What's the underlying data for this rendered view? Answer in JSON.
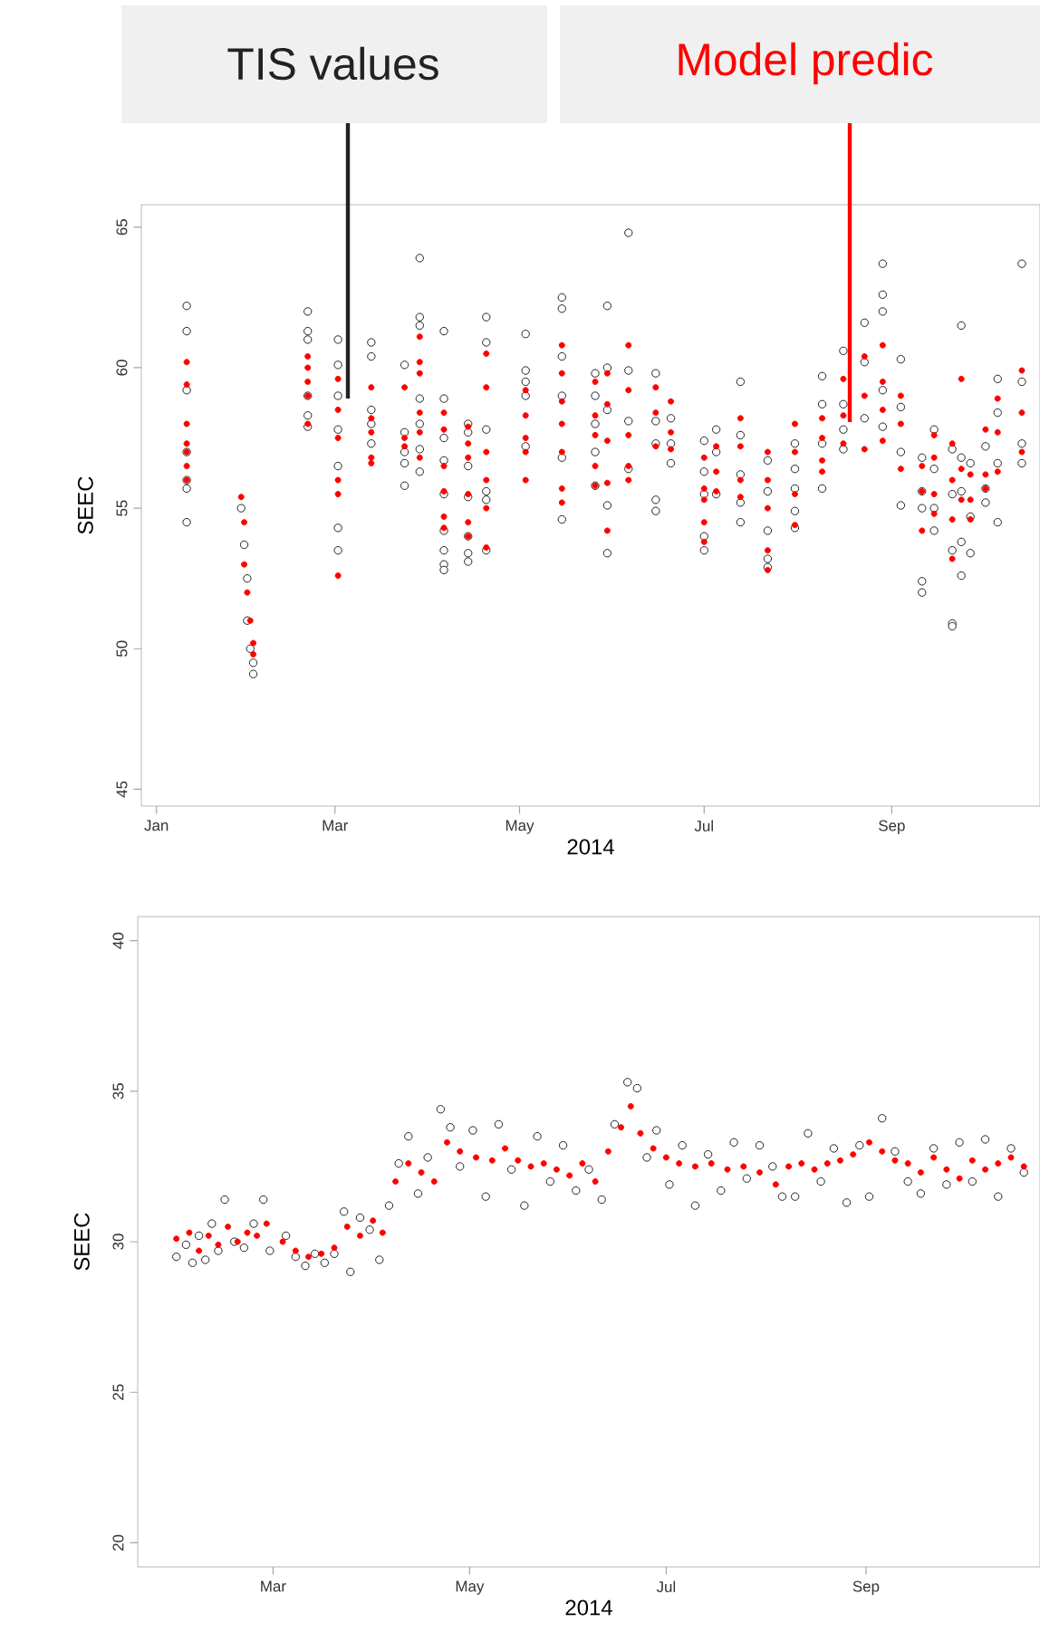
{
  "chart_data": [
    {
      "type": "scatter",
      "xlabel": "2014",
      "ylabel": "SEEC",
      "xlim": [
        "2013-12-27",
        "2014-10-20"
      ],
      "ylim": [
        44.4,
        65.8
      ],
      "xticks": [
        {
          "value": "2014-01-01",
          "label": "Jan"
        },
        {
          "value": "2014-03-01",
          "label": "Mar"
        },
        {
          "value": "2014-05-01",
          "label": "May"
        },
        {
          "value": "2014-07-01",
          "label": "Jul"
        },
        {
          "value": "2014-09-01",
          "label": "Sep"
        }
      ],
      "yticks": [
        45,
        50,
        55,
        60,
        65
      ],
      "series": [
        {
          "name": "TIS values",
          "color": "#222222",
          "x": [
            "2014-01-11",
            "2014-01-11",
            "2014-01-11",
            "2014-01-11",
            "2014-01-11",
            "2014-01-11",
            "2014-01-11",
            "2014-01-29",
            "2014-01-30",
            "2014-01-31",
            "2014-01-31",
            "2014-02-01",
            "2014-02-02",
            "2014-02-02",
            "2014-02-20",
            "2014-02-20",
            "2014-02-20",
            "2014-02-20",
            "2014-02-20",
            "2014-02-20",
            "2014-03-02",
            "2014-03-02",
            "2014-03-02",
            "2014-03-02",
            "2014-03-02",
            "2014-03-02",
            "2014-03-02",
            "2014-03-13",
            "2014-03-13",
            "2014-03-13",
            "2014-03-13",
            "2014-03-13",
            "2014-03-24",
            "2014-03-24",
            "2014-03-24",
            "2014-03-24",
            "2014-03-24",
            "2014-03-29",
            "2014-03-29",
            "2014-03-29",
            "2014-03-29",
            "2014-03-29",
            "2014-03-29",
            "2014-03-29",
            "2014-04-06",
            "2014-04-06",
            "2014-04-06",
            "2014-04-06",
            "2014-04-06",
            "2014-04-06",
            "2014-04-06",
            "2014-04-06",
            "2014-04-06",
            "2014-04-14",
            "2014-04-14",
            "2014-04-14",
            "2014-04-14",
            "2014-04-14",
            "2014-04-14",
            "2014-04-14",
            "2014-04-20",
            "2014-04-20",
            "2014-04-20",
            "2014-04-20",
            "2014-04-20",
            "2014-04-20",
            "2014-05-03",
            "2014-05-03",
            "2014-05-03",
            "2014-05-03",
            "2014-05-03",
            "2014-05-15",
            "2014-05-15",
            "2014-05-15",
            "2014-05-15",
            "2014-05-15",
            "2014-05-15",
            "2014-05-26",
            "2014-05-26",
            "2014-05-26",
            "2014-05-26",
            "2014-05-26",
            "2014-05-30",
            "2014-05-30",
            "2014-05-30",
            "2014-05-30",
            "2014-05-30",
            "2014-06-06",
            "2014-06-06",
            "2014-06-06",
            "2014-06-06",
            "2014-06-15",
            "2014-06-15",
            "2014-06-15",
            "2014-06-15",
            "2014-06-15",
            "2014-06-20",
            "2014-06-20",
            "2014-06-20",
            "2014-07-01",
            "2014-07-01",
            "2014-07-01",
            "2014-07-01",
            "2014-07-01",
            "2014-07-05",
            "2014-07-05",
            "2014-07-05",
            "2014-07-13",
            "2014-07-13",
            "2014-07-13",
            "2014-07-13",
            "2014-07-13",
            "2014-07-22",
            "2014-07-22",
            "2014-07-22",
            "2014-07-22",
            "2014-07-22",
            "2014-07-31",
            "2014-07-31",
            "2014-07-31",
            "2014-07-31",
            "2014-07-31",
            "2014-08-09",
            "2014-08-09",
            "2014-08-09",
            "2014-08-09",
            "2014-08-16",
            "2014-08-16",
            "2014-08-16",
            "2014-08-16",
            "2014-08-23",
            "2014-08-23",
            "2014-08-23",
            "2014-08-29",
            "2014-08-29",
            "2014-08-29",
            "2014-08-29",
            "2014-08-29",
            "2014-09-04",
            "2014-09-04",
            "2014-09-04",
            "2014-09-04",
            "2014-09-11",
            "2014-09-11",
            "2014-09-11",
            "2014-09-11",
            "2014-09-11",
            "2014-09-15",
            "2014-09-15",
            "2014-09-15",
            "2014-09-15",
            "2014-09-21",
            "2014-09-21",
            "2014-09-21",
            "2014-09-21",
            "2014-09-21",
            "2014-09-24",
            "2014-09-24",
            "2014-09-24",
            "2014-09-24",
            "2014-09-24",
            "2014-09-27",
            "2014-09-27",
            "2014-09-27",
            "2014-10-02",
            "2014-10-02",
            "2014-10-02",
            "2014-10-06",
            "2014-10-06",
            "2014-10-06",
            "2014-10-06",
            "2014-10-14",
            "2014-10-14",
            "2014-10-14",
            "2014-10-14"
          ],
          "values": [
            62.2,
            61.3,
            59.2,
            57.0,
            56.0,
            55.7,
            54.5,
            55.0,
            53.7,
            52.5,
            51.0,
            50.0,
            49.5,
            49.1,
            62.0,
            61.3,
            61.0,
            59.0,
            58.3,
            57.9,
            61.0,
            60.1,
            59.0,
            57.8,
            56.5,
            54.3,
            53.5,
            60.9,
            60.4,
            58.5,
            58.0,
            57.3,
            60.1,
            57.7,
            57.0,
            56.6,
            55.8,
            63.9,
            61.8,
            61.5,
            58.9,
            58.0,
            57.1,
            56.3,
            61.3,
            58.9,
            57.5,
            56.7,
            55.5,
            54.2,
            53.5,
            53.0,
            52.8,
            58.0,
            57.7,
            56.5,
            55.4,
            54.0,
            53.4,
            53.1,
            61.8,
            60.9,
            57.8,
            55.6,
            55.3,
            53.5,
            61.2,
            59.9,
            59.5,
            59.0,
            57.2,
            62.5,
            62.1,
            60.4,
            59.0,
            56.8,
            54.6,
            59.8,
            59.0,
            58.0,
            57.0,
            55.8,
            62.2,
            60.0,
            58.5,
            55.1,
            53.4,
            64.8,
            59.9,
            58.1,
            56.4,
            59.8,
            58.1,
            57.3,
            55.3,
            54.9,
            58.2,
            57.3,
            56.6,
            57.4,
            56.3,
            55.5,
            54.0,
            53.5,
            57.8,
            57.0,
            55.5,
            59.5,
            57.6,
            56.2,
            55.2,
            54.5,
            56.7,
            55.6,
            54.2,
            53.2,
            52.9,
            57.3,
            56.4,
            55.7,
            54.9,
            54.3,
            59.7,
            58.7,
            57.3,
            55.7,
            60.6,
            58.7,
            57.8,
            57.1,
            61.6,
            60.2,
            58.2,
            63.7,
            62.6,
            62.0,
            59.2,
            57.9,
            60.3,
            58.6,
            57.0,
            55.1,
            56.8,
            55.6,
            55.0,
            52.4,
            52.0,
            57.8,
            56.4,
            55.0,
            54.2,
            57.1,
            55.5,
            53.5,
            50.9,
            50.8,
            61.5,
            56.8,
            55.6,
            53.8,
            52.6,
            56.6,
            54.7,
            53.4,
            57.2,
            55.7,
            55.2,
            59.6,
            58.4,
            56.6,
            54.5,
            63.7,
            59.5,
            57.3,
            56.6
          ]
        },
        {
          "name": "Model predic",
          "color": "#ff0000",
          "x": [
            "2014-01-11",
            "2014-01-11",
            "2014-01-11",
            "2014-01-11",
            "2014-01-11",
            "2014-01-11",
            "2014-01-11",
            "2014-01-29",
            "2014-01-30",
            "2014-01-30",
            "2014-01-31",
            "2014-02-01",
            "2014-02-02",
            "2014-02-02",
            "2014-02-20",
            "2014-02-20",
            "2014-02-20",
            "2014-02-20",
            "2014-02-20",
            "2014-03-02",
            "2014-03-02",
            "2014-03-02",
            "2014-03-02",
            "2014-03-02",
            "2014-03-02",
            "2014-03-13",
            "2014-03-13",
            "2014-03-13",
            "2014-03-13",
            "2014-03-13",
            "2014-03-24",
            "2014-03-24",
            "2014-03-24",
            "2014-03-29",
            "2014-03-29",
            "2014-03-29",
            "2014-03-29",
            "2014-03-29",
            "2014-03-29",
            "2014-04-06",
            "2014-04-06",
            "2014-04-06",
            "2014-04-06",
            "2014-04-06",
            "2014-04-06",
            "2014-04-14",
            "2014-04-14",
            "2014-04-14",
            "2014-04-14",
            "2014-04-14",
            "2014-04-14",
            "2014-04-20",
            "2014-04-20",
            "2014-04-20",
            "2014-04-20",
            "2014-04-20",
            "2014-04-20",
            "2014-05-03",
            "2014-05-03",
            "2014-05-03",
            "2014-05-03",
            "2014-05-03",
            "2014-05-15",
            "2014-05-15",
            "2014-05-15",
            "2014-05-15",
            "2014-05-15",
            "2014-05-15",
            "2014-05-15",
            "2014-05-26",
            "2014-05-26",
            "2014-05-26",
            "2014-05-26",
            "2014-05-26",
            "2014-05-30",
            "2014-05-30",
            "2014-05-30",
            "2014-05-30",
            "2014-05-30",
            "2014-06-06",
            "2014-06-06",
            "2014-06-06",
            "2014-06-06",
            "2014-06-06",
            "2014-06-15",
            "2014-06-15",
            "2014-06-15",
            "2014-06-20",
            "2014-06-20",
            "2014-06-20",
            "2014-07-01",
            "2014-07-01",
            "2014-07-01",
            "2014-07-01",
            "2014-07-01",
            "2014-07-05",
            "2014-07-05",
            "2014-07-05",
            "2014-07-13",
            "2014-07-13",
            "2014-07-13",
            "2014-07-13",
            "2014-07-22",
            "2014-07-22",
            "2014-07-22",
            "2014-07-22",
            "2014-07-22",
            "2014-07-31",
            "2014-07-31",
            "2014-07-31",
            "2014-07-31",
            "2014-08-09",
            "2014-08-09",
            "2014-08-09",
            "2014-08-09",
            "2014-08-16",
            "2014-08-16",
            "2014-08-16",
            "2014-08-23",
            "2014-08-23",
            "2014-08-23",
            "2014-08-29",
            "2014-08-29",
            "2014-08-29",
            "2014-08-29",
            "2014-09-04",
            "2014-09-04",
            "2014-09-04",
            "2014-09-11",
            "2014-09-11",
            "2014-09-11",
            "2014-09-15",
            "2014-09-15",
            "2014-09-15",
            "2014-09-15",
            "2014-09-21",
            "2014-09-21",
            "2014-09-21",
            "2014-09-21",
            "2014-09-24",
            "2014-09-24",
            "2014-09-24",
            "2014-09-27",
            "2014-09-27",
            "2014-09-27",
            "2014-10-02",
            "2014-10-02",
            "2014-10-02",
            "2014-10-06",
            "2014-10-06",
            "2014-10-06",
            "2014-10-14",
            "2014-10-14",
            "2014-10-14"
          ],
          "values": [
            60.2,
            59.4,
            58.0,
            57.3,
            57.0,
            56.5,
            56.0,
            55.4,
            54.5,
            53.0,
            52.0,
            51.0,
            50.2,
            49.8,
            60.4,
            60.0,
            59.5,
            59.0,
            58.0,
            59.6,
            58.5,
            57.5,
            56.0,
            55.5,
            52.6,
            59.3,
            58.2,
            57.7,
            56.8,
            56.6,
            59.3,
            57.5,
            57.2,
            61.1,
            60.2,
            59.8,
            58.4,
            57.7,
            56.8,
            58.4,
            57.8,
            56.5,
            55.6,
            54.7,
            54.3,
            57.9,
            57.3,
            56.8,
            55.5,
            54.5,
            54.0,
            60.5,
            59.3,
            57.0,
            56.0,
            55.0,
            53.6,
            59.2,
            58.3,
            57.5,
            57.0,
            56.0,
            60.8,
            59.8,
            58.8,
            58.0,
            57.0,
            55.7,
            55.2,
            59.5,
            58.3,
            57.6,
            56.5,
            55.8,
            59.8,
            58.7,
            57.4,
            55.9,
            54.2,
            60.8,
            59.2,
            57.6,
            56.5,
            56.0,
            59.3,
            58.4,
            57.2,
            58.8,
            57.7,
            57.1,
            56.8,
            55.7,
            55.3,
            54.5,
            53.8,
            57.2,
            56.3,
            55.6,
            58.2,
            57.2,
            56.0,
            55.4,
            57.0,
            56.0,
            55.0,
            53.5,
            52.8,
            58.0,
            57.0,
            55.5,
            54.4,
            58.2,
            57.5,
            56.7,
            56.3,
            59.6,
            58.3,
            57.3,
            60.4,
            59.0,
            57.1,
            60.8,
            59.5,
            58.5,
            57.4,
            59.0,
            58.0,
            56.4,
            56.5,
            55.6,
            54.2,
            57.6,
            56.8,
            55.5,
            54.8,
            57.3,
            56.0,
            54.6,
            53.2,
            59.6,
            56.4,
            55.3,
            56.2,
            55.3,
            54.6,
            57.8,
            56.2,
            55.7,
            58.9,
            57.7,
            56.3,
            59.9,
            58.4,
            57.0
          ]
        }
      ]
    },
    {
      "type": "scatter",
      "xlabel": "2014",
      "ylabel": "SEEC",
      "xlim": [
        "2014-01-18",
        "2014-10-25"
      ],
      "ylim": [
        19.2,
        40.8
      ],
      "xticks": [
        {
          "value": "2014-03-01",
          "label": "Mar"
        },
        {
          "value": "2014-05-01",
          "label": "May"
        },
        {
          "value": "2014-07-01",
          "label": "Jul"
        },
        {
          "value": "2014-09-01",
          "label": "Sep"
        }
      ],
      "yticks": [
        20,
        25,
        30,
        35,
        40
      ],
      "series": [
        {
          "color": "#222222",
          "x": [
            "2014-01-30",
            "2014-02-02",
            "2014-02-04",
            "2014-02-06",
            "2014-02-08",
            "2014-02-10",
            "2014-02-12",
            "2014-02-14",
            "2014-02-17",
            "2014-02-20",
            "2014-02-23",
            "2014-02-26",
            "2014-02-28",
            "2014-03-05",
            "2014-03-08",
            "2014-03-11",
            "2014-03-14",
            "2014-03-17",
            "2014-03-20",
            "2014-03-23",
            "2014-03-25",
            "2014-03-28",
            "2014-03-31",
            "2014-04-03",
            "2014-04-06",
            "2014-04-09",
            "2014-04-12",
            "2014-04-15",
            "2014-04-18",
            "2014-04-22",
            "2014-04-25",
            "2014-04-28",
            "2014-05-02",
            "2014-05-06",
            "2014-05-10",
            "2014-05-14",
            "2014-05-18",
            "2014-05-22",
            "2014-05-26",
            "2014-05-30",
            "2014-06-03",
            "2014-06-07",
            "2014-06-11",
            "2014-06-15",
            "2014-06-19",
            "2014-06-22",
            "2014-06-25",
            "2014-06-28",
            "2014-07-02",
            "2014-07-06",
            "2014-07-10",
            "2014-07-14",
            "2014-07-18",
            "2014-07-22",
            "2014-07-26",
            "2014-07-30",
            "2014-08-03",
            "2014-08-06",
            "2014-08-10",
            "2014-08-14",
            "2014-08-18",
            "2014-08-22",
            "2014-08-26",
            "2014-08-30",
            "2014-09-02",
            "2014-09-06",
            "2014-09-10",
            "2014-09-14",
            "2014-09-18",
            "2014-09-22",
            "2014-09-26",
            "2014-09-30",
            "2014-10-04",
            "2014-10-08",
            "2014-10-12",
            "2014-10-16",
            "2014-10-20"
          ],
          "values": [
            29.5,
            29.9,
            29.3,
            30.2,
            29.4,
            30.6,
            29.7,
            31.4,
            30.0,
            29.8,
            30.6,
            31.4,
            29.7,
            30.2,
            29.5,
            29.2,
            29.6,
            29.3,
            29.6,
            31.0,
            29.0,
            30.8,
            30.4,
            29.4,
            31.2,
            32.6,
            33.5,
            31.6,
            32.8,
            34.4,
            33.8,
            32.5,
            33.7,
            31.5,
            33.9,
            32.4,
            31.2,
            33.5,
            32.0,
            33.2,
            31.7,
            32.4,
            31.4,
            33.9,
            35.3,
            35.1,
            32.8,
            33.7,
            31.9,
            33.2,
            31.2,
            32.9,
            31.7,
            33.3,
            32.1,
            33.2,
            32.5,
            31.5,
            31.5,
            33.6,
            32.0,
            33.1,
            31.3,
            33.2,
            31.5,
            34.1,
            33.0,
            32.0,
            31.6,
            33.1,
            31.9,
            33.3,
            32.0,
            33.4,
            31.5,
            33.1,
            32.3
          ]
        },
        {
          "color": "#ff0000",
          "x": [
            "2014-01-30",
            "2014-02-03",
            "2014-02-06",
            "2014-02-09",
            "2014-02-12",
            "2014-02-15",
            "2014-02-18",
            "2014-02-21",
            "2014-02-24",
            "2014-02-27",
            "2014-03-04",
            "2014-03-08",
            "2014-03-12",
            "2014-03-16",
            "2014-03-20",
            "2014-03-24",
            "2014-03-28",
            "2014-04-01",
            "2014-04-04",
            "2014-04-08",
            "2014-04-12",
            "2014-04-16",
            "2014-04-20",
            "2014-04-24",
            "2014-04-28",
            "2014-05-03",
            "2014-05-08",
            "2014-05-12",
            "2014-05-16",
            "2014-05-20",
            "2014-05-24",
            "2014-05-28",
            "2014-06-01",
            "2014-06-05",
            "2014-06-09",
            "2014-06-13",
            "2014-06-17",
            "2014-06-20",
            "2014-06-23",
            "2014-06-27",
            "2014-07-01",
            "2014-07-05",
            "2014-07-10",
            "2014-07-15",
            "2014-07-20",
            "2014-07-25",
            "2014-07-30",
            "2014-08-04",
            "2014-08-08",
            "2014-08-12",
            "2014-08-16",
            "2014-08-20",
            "2014-08-24",
            "2014-08-28",
            "2014-09-02",
            "2014-09-06",
            "2014-09-10",
            "2014-09-14",
            "2014-09-18",
            "2014-09-22",
            "2014-09-26",
            "2014-09-30",
            "2014-10-04",
            "2014-10-08",
            "2014-10-12",
            "2014-10-16",
            "2014-10-20"
          ],
          "values": [
            30.1,
            30.3,
            29.7,
            30.2,
            29.9,
            30.5,
            30.0,
            30.3,
            30.2,
            30.6,
            30.0,
            29.7,
            29.5,
            29.6,
            29.8,
            30.5,
            30.2,
            30.7,
            30.3,
            32.0,
            32.6,
            32.3,
            32.0,
            33.3,
            33.0,
            32.8,
            32.7,
            33.1,
            32.7,
            32.5,
            32.6,
            32.4,
            32.2,
            32.6,
            32.0,
            33.0,
            33.8,
            34.5,
            33.6,
            33.1,
            32.8,
            32.6,
            32.5,
            32.6,
            32.4,
            32.5,
            32.3,
            31.9,
            32.5,
            32.6,
            32.4,
            32.6,
            32.7,
            32.9,
            33.3,
            33.0,
            32.7,
            32.6,
            32.3,
            32.8,
            32.4,
            32.1,
            32.7,
            32.4,
            32.6,
            32.8,
            32.5
          ]
        }
      ]
    }
  ]
}
